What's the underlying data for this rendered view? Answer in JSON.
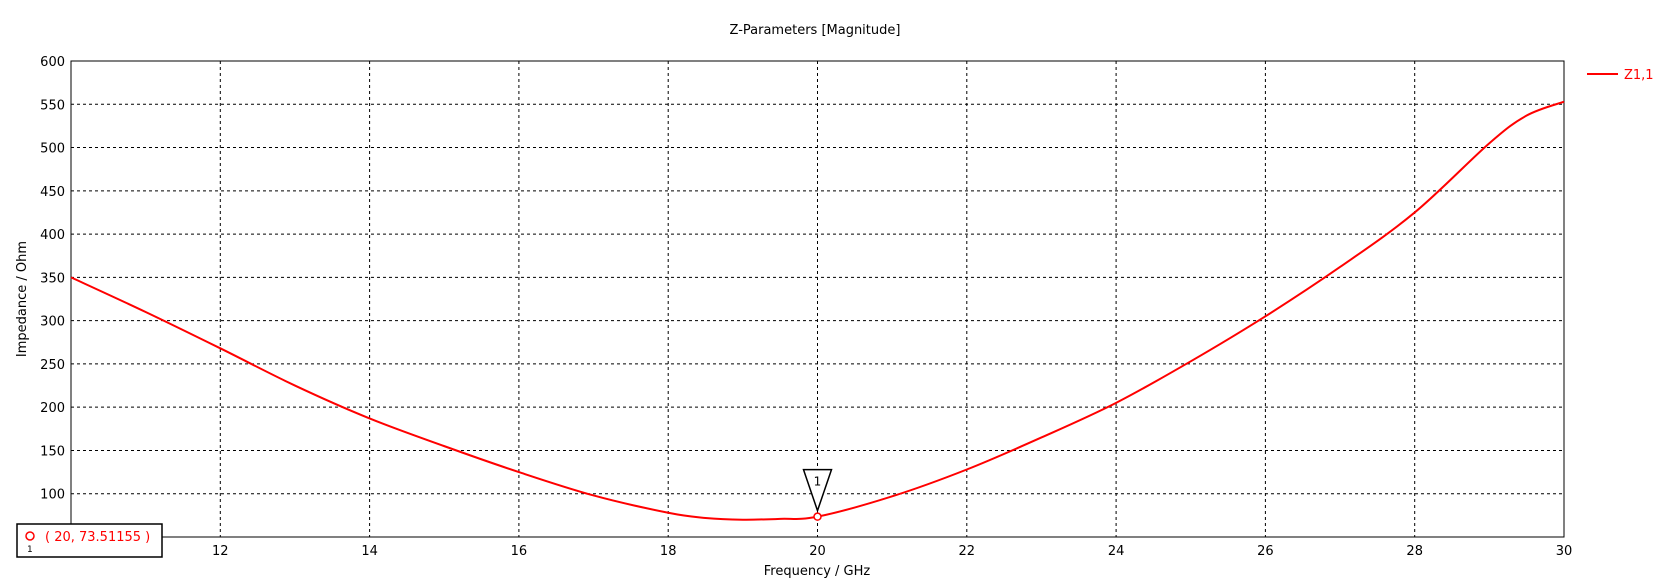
{
  "chart_data": {
    "type": "line",
    "title": "Z-Parameters [Magnitude]",
    "xlabel": "Frequency / GHz",
    "ylabel": "Impedance / Ohm",
    "xlim": [
      10,
      30
    ],
    "ylim": [
      50,
      600
    ],
    "xticks": [
      12,
      14,
      16,
      18,
      20,
      22,
      24,
      26,
      28,
      30
    ],
    "yticks": [
      100,
      150,
      200,
      250,
      300,
      350,
      400,
      450,
      500,
      550,
      600
    ],
    "grid": true,
    "legend_position": "top-right",
    "series": [
      {
        "name": "Z1,1",
        "color": "#ff0000",
        "x": [
          10,
          11,
          12,
          13,
          14,
          15,
          16,
          17,
          18,
          18.5,
          19,
          19.5,
          20,
          21,
          22,
          23,
          24,
          25,
          26,
          27,
          28,
          29,
          29.5,
          30
        ],
        "y": [
          350,
          310,
          268,
          225,
          187,
          155,
          125,
          98,
          78,
          72,
          70,
          71,
          73.5,
          97,
          128,
          165,
          205,
          253,
          305,
          362,
          425,
          505,
          537,
          553
        ]
      }
    ],
    "marker": {
      "id": "1",
      "x": 20,
      "y": 73.51155,
      "label": "( 20, 73.51155 )"
    }
  }
}
